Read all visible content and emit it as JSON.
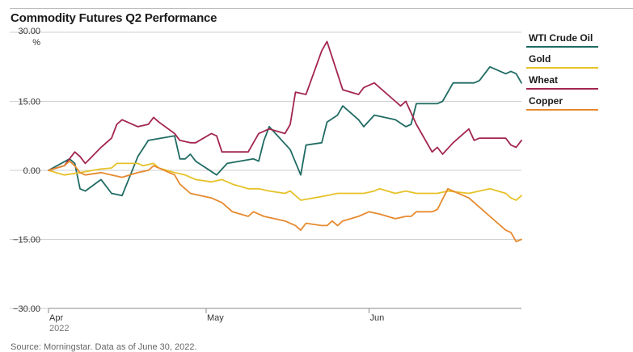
{
  "footer": "Source: Morningstar. Data as of June 30, 2022.",
  "chart_data": {
    "type": "line",
    "title": "Commodity Futures Q2 Performance",
    "yunit": "%",
    "ylim": [
      -30,
      30
    ],
    "yticks": [
      30,
      15,
      0,
      -15,
      -30
    ],
    "ytick_labels": [
      "30.00",
      "15.00",
      "0.00",
      "−15.00",
      "−30.00"
    ],
    "xlim": [
      "2022-04-01",
      "2022-06-30"
    ],
    "xticks": [
      {
        "date": "2022-04-01",
        "label": "Apr",
        "sublabel": "2022"
      },
      {
        "date": "2022-05-01",
        "label": "May",
        "sublabel": ""
      },
      {
        "date": "2022-06-01",
        "label": "Jun",
        "sublabel": ""
      }
    ],
    "grid": true,
    "legend_position": "right",
    "series": [
      {
        "name": "WTI Crude Oil",
        "color": "#1f6b63",
        "points": [
          [
            "2022-04-01",
            0
          ],
          [
            "2022-04-05",
            2.5
          ],
          [
            "2022-04-06",
            1.5
          ],
          [
            "2022-04-07",
            -4
          ],
          [
            "2022-04-08",
            -4.5
          ],
          [
            "2022-04-11",
            -2
          ],
          [
            "2022-04-13",
            -5
          ],
          [
            "2022-04-15",
            -5.5
          ],
          [
            "2022-04-18",
            3
          ],
          [
            "2022-04-20",
            6.5
          ],
          [
            "2022-04-25",
            7.5
          ],
          [
            "2022-04-26",
            2.5
          ],
          [
            "2022-04-27",
            2.5
          ],
          [
            "2022-04-28",
            3.5
          ],
          [
            "2022-04-29",
            2
          ],
          [
            "2022-05-03",
            -1
          ],
          [
            "2022-05-05",
            1.5
          ],
          [
            "2022-05-10",
            2.5
          ],
          [
            "2022-05-11",
            2
          ],
          [
            "2022-05-12",
            6.5
          ],
          [
            "2022-05-13",
            9.5
          ],
          [
            "2022-05-17",
            4.5
          ],
          [
            "2022-05-19",
            -1
          ],
          [
            "2022-05-20",
            5.5
          ],
          [
            "2022-05-23",
            6
          ],
          [
            "2022-05-24",
            10.5
          ],
          [
            "2022-05-26",
            12
          ],
          [
            "2022-05-27",
            14
          ],
          [
            "2022-05-30",
            11
          ],
          [
            "2022-05-31",
            9.5
          ],
          [
            "2022-06-02",
            12
          ],
          [
            "2022-06-06",
            11
          ],
          [
            "2022-06-08",
            9.5
          ],
          [
            "2022-06-09",
            10
          ],
          [
            "2022-06-10",
            14.5
          ],
          [
            "2022-06-14",
            14.5
          ],
          [
            "2022-06-15",
            15
          ],
          [
            "2022-06-17",
            19
          ],
          [
            "2022-06-20",
            19
          ],
          [
            "2022-06-21",
            19
          ],
          [
            "2022-06-22",
            19.5
          ],
          [
            "2022-06-24",
            22.5
          ],
          [
            "2022-06-27",
            21
          ],
          [
            "2022-06-28",
            21.5
          ],
          [
            "2022-06-29",
            21
          ],
          [
            "2022-06-30",
            19
          ]
        ]
      },
      {
        "name": "Gold",
        "color": "#e6c229",
        "points": [
          [
            "2022-04-01",
            0
          ],
          [
            "2022-04-04",
            -1
          ],
          [
            "2022-04-07",
            -0.5
          ],
          [
            "2022-04-11",
            0.3
          ],
          [
            "2022-04-13",
            0.5
          ],
          [
            "2022-04-14",
            1.5
          ],
          [
            "2022-04-18",
            1.5
          ],
          [
            "2022-04-19",
            1
          ],
          [
            "2022-04-21",
            1.5
          ],
          [
            "2022-04-22",
            0.5
          ],
          [
            "2022-04-25",
            -0.5
          ],
          [
            "2022-04-27",
            -1
          ],
          [
            "2022-04-29",
            -2
          ],
          [
            "2022-05-02",
            -2.5
          ],
          [
            "2022-05-04",
            -2
          ],
          [
            "2022-05-06",
            -3
          ],
          [
            "2022-05-09",
            -4
          ],
          [
            "2022-05-11",
            -4
          ],
          [
            "2022-05-13",
            -4.5
          ],
          [
            "2022-05-16",
            -5
          ],
          [
            "2022-05-17",
            -4.5
          ],
          [
            "2022-05-19",
            -6.5
          ],
          [
            "2022-05-24",
            -5.5
          ],
          [
            "2022-05-26",
            -5
          ],
          [
            "2022-05-31",
            -5
          ],
          [
            "2022-06-02",
            -4.5
          ],
          [
            "2022-06-03",
            -4
          ],
          [
            "2022-06-06",
            -5
          ],
          [
            "2022-06-08",
            -4.5
          ],
          [
            "2022-06-10",
            -5
          ],
          [
            "2022-06-14",
            -5
          ],
          [
            "2022-06-16",
            -4.5
          ],
          [
            "2022-06-20",
            -5
          ],
          [
            "2022-06-22",
            -4.5
          ],
          [
            "2022-06-24",
            -4
          ],
          [
            "2022-06-27",
            -5
          ],
          [
            "2022-06-28",
            -6
          ],
          [
            "2022-06-29",
            -6.5
          ],
          [
            "2022-06-30",
            -5.5
          ]
        ]
      },
      {
        "name": "Wheat",
        "color": "#a3264e",
        "points": [
          [
            "2022-04-01",
            0
          ],
          [
            "2022-04-04",
            1
          ],
          [
            "2022-04-06",
            4
          ],
          [
            "2022-04-07",
            3
          ],
          [
            "2022-04-08",
            1.5
          ],
          [
            "2022-04-11",
            5
          ],
          [
            "2022-04-13",
            7
          ],
          [
            "2022-04-14",
            10
          ],
          [
            "2022-04-15",
            11
          ],
          [
            "2022-04-18",
            9.5
          ],
          [
            "2022-04-20",
            10
          ],
          [
            "2022-04-21",
            11.5
          ],
          [
            "2022-04-22",
            10.5
          ],
          [
            "2022-04-25",
            8
          ],
          [
            "2022-04-26",
            6.5
          ],
          [
            "2022-04-28",
            6
          ],
          [
            "2022-04-29",
            6
          ],
          [
            "2022-05-02",
            8
          ],
          [
            "2022-05-03",
            7.5
          ],
          [
            "2022-05-04",
            4
          ],
          [
            "2022-05-06",
            4
          ],
          [
            "2022-05-09",
            4
          ],
          [
            "2022-05-11",
            8
          ],
          [
            "2022-05-13",
            9
          ],
          [
            "2022-05-16",
            8
          ],
          [
            "2022-05-17",
            10
          ],
          [
            "2022-05-18",
            17
          ],
          [
            "2022-05-20",
            16.5
          ],
          [
            "2022-05-23",
            26
          ],
          [
            "2022-05-24",
            28
          ],
          [
            "2022-05-25",
            24.5
          ],
          [
            "2022-05-27",
            17.5
          ],
          [
            "2022-05-30",
            16.5
          ],
          [
            "2022-05-31",
            18
          ],
          [
            "2022-06-02",
            19
          ],
          [
            "2022-06-06",
            15
          ],
          [
            "2022-06-07",
            14
          ],
          [
            "2022-06-08",
            15
          ],
          [
            "2022-06-10",
            10
          ],
          [
            "2022-06-13",
            4
          ],
          [
            "2022-06-14",
            5
          ],
          [
            "2022-06-15",
            3.5
          ],
          [
            "2022-06-17",
            6
          ],
          [
            "2022-06-20",
            9
          ],
          [
            "2022-06-21",
            6.5
          ],
          [
            "2022-06-22",
            7
          ],
          [
            "2022-06-24",
            7
          ],
          [
            "2022-06-27",
            7
          ],
          [
            "2022-06-28",
            5.5
          ],
          [
            "2022-06-29",
            5
          ],
          [
            "2022-06-30",
            6.5
          ]
        ]
      },
      {
        "name": "Copper",
        "color": "#e68a2e",
        "points": [
          [
            "2022-04-01",
            0
          ],
          [
            "2022-04-04",
            1
          ],
          [
            "2022-04-05",
            2
          ],
          [
            "2022-04-06",
            1
          ],
          [
            "2022-04-07",
            -0.5
          ],
          [
            "2022-04-08",
            -1
          ],
          [
            "2022-04-11",
            -0.5
          ],
          [
            "2022-04-13",
            -1
          ],
          [
            "2022-04-15",
            -1.5
          ],
          [
            "2022-04-18",
            -0.5
          ],
          [
            "2022-04-20",
            0
          ],
          [
            "2022-04-21",
            1
          ],
          [
            "2022-04-22",
            0.5
          ],
          [
            "2022-04-25",
            -1
          ],
          [
            "2022-04-26",
            -3
          ],
          [
            "2022-04-28",
            -5
          ],
          [
            "2022-05-02",
            -6
          ],
          [
            "2022-05-04",
            -7
          ],
          [
            "2022-05-06",
            -9
          ],
          [
            "2022-05-09",
            -10
          ],
          [
            "2022-05-10",
            -9
          ],
          [
            "2022-05-12",
            -10
          ],
          [
            "2022-05-16",
            -11
          ],
          [
            "2022-05-18",
            -12
          ],
          [
            "2022-05-19",
            -13
          ],
          [
            "2022-05-20",
            -11.5
          ],
          [
            "2022-05-23",
            -12
          ],
          [
            "2022-05-24",
            -12
          ],
          [
            "2022-05-25",
            -11
          ],
          [
            "2022-05-26",
            -12
          ],
          [
            "2022-05-27",
            -11
          ],
          [
            "2022-05-30",
            -10
          ],
          [
            "2022-06-01",
            -9
          ],
          [
            "2022-06-03",
            -9.5
          ],
          [
            "2022-06-06",
            -10.5
          ],
          [
            "2022-06-08",
            -10
          ],
          [
            "2022-06-09",
            -10
          ],
          [
            "2022-06-10",
            -9
          ],
          [
            "2022-06-13",
            -9
          ],
          [
            "2022-06-14",
            -8.5
          ],
          [
            "2022-06-16",
            -4
          ],
          [
            "2022-06-20",
            -6
          ],
          [
            "2022-06-22",
            -8
          ],
          [
            "2022-06-24",
            -10
          ],
          [
            "2022-06-27",
            -13
          ],
          [
            "2022-06-28",
            -13.5
          ],
          [
            "2022-06-29",
            -15.5
          ],
          [
            "2022-06-30",
            -15
          ]
        ]
      }
    ]
  }
}
